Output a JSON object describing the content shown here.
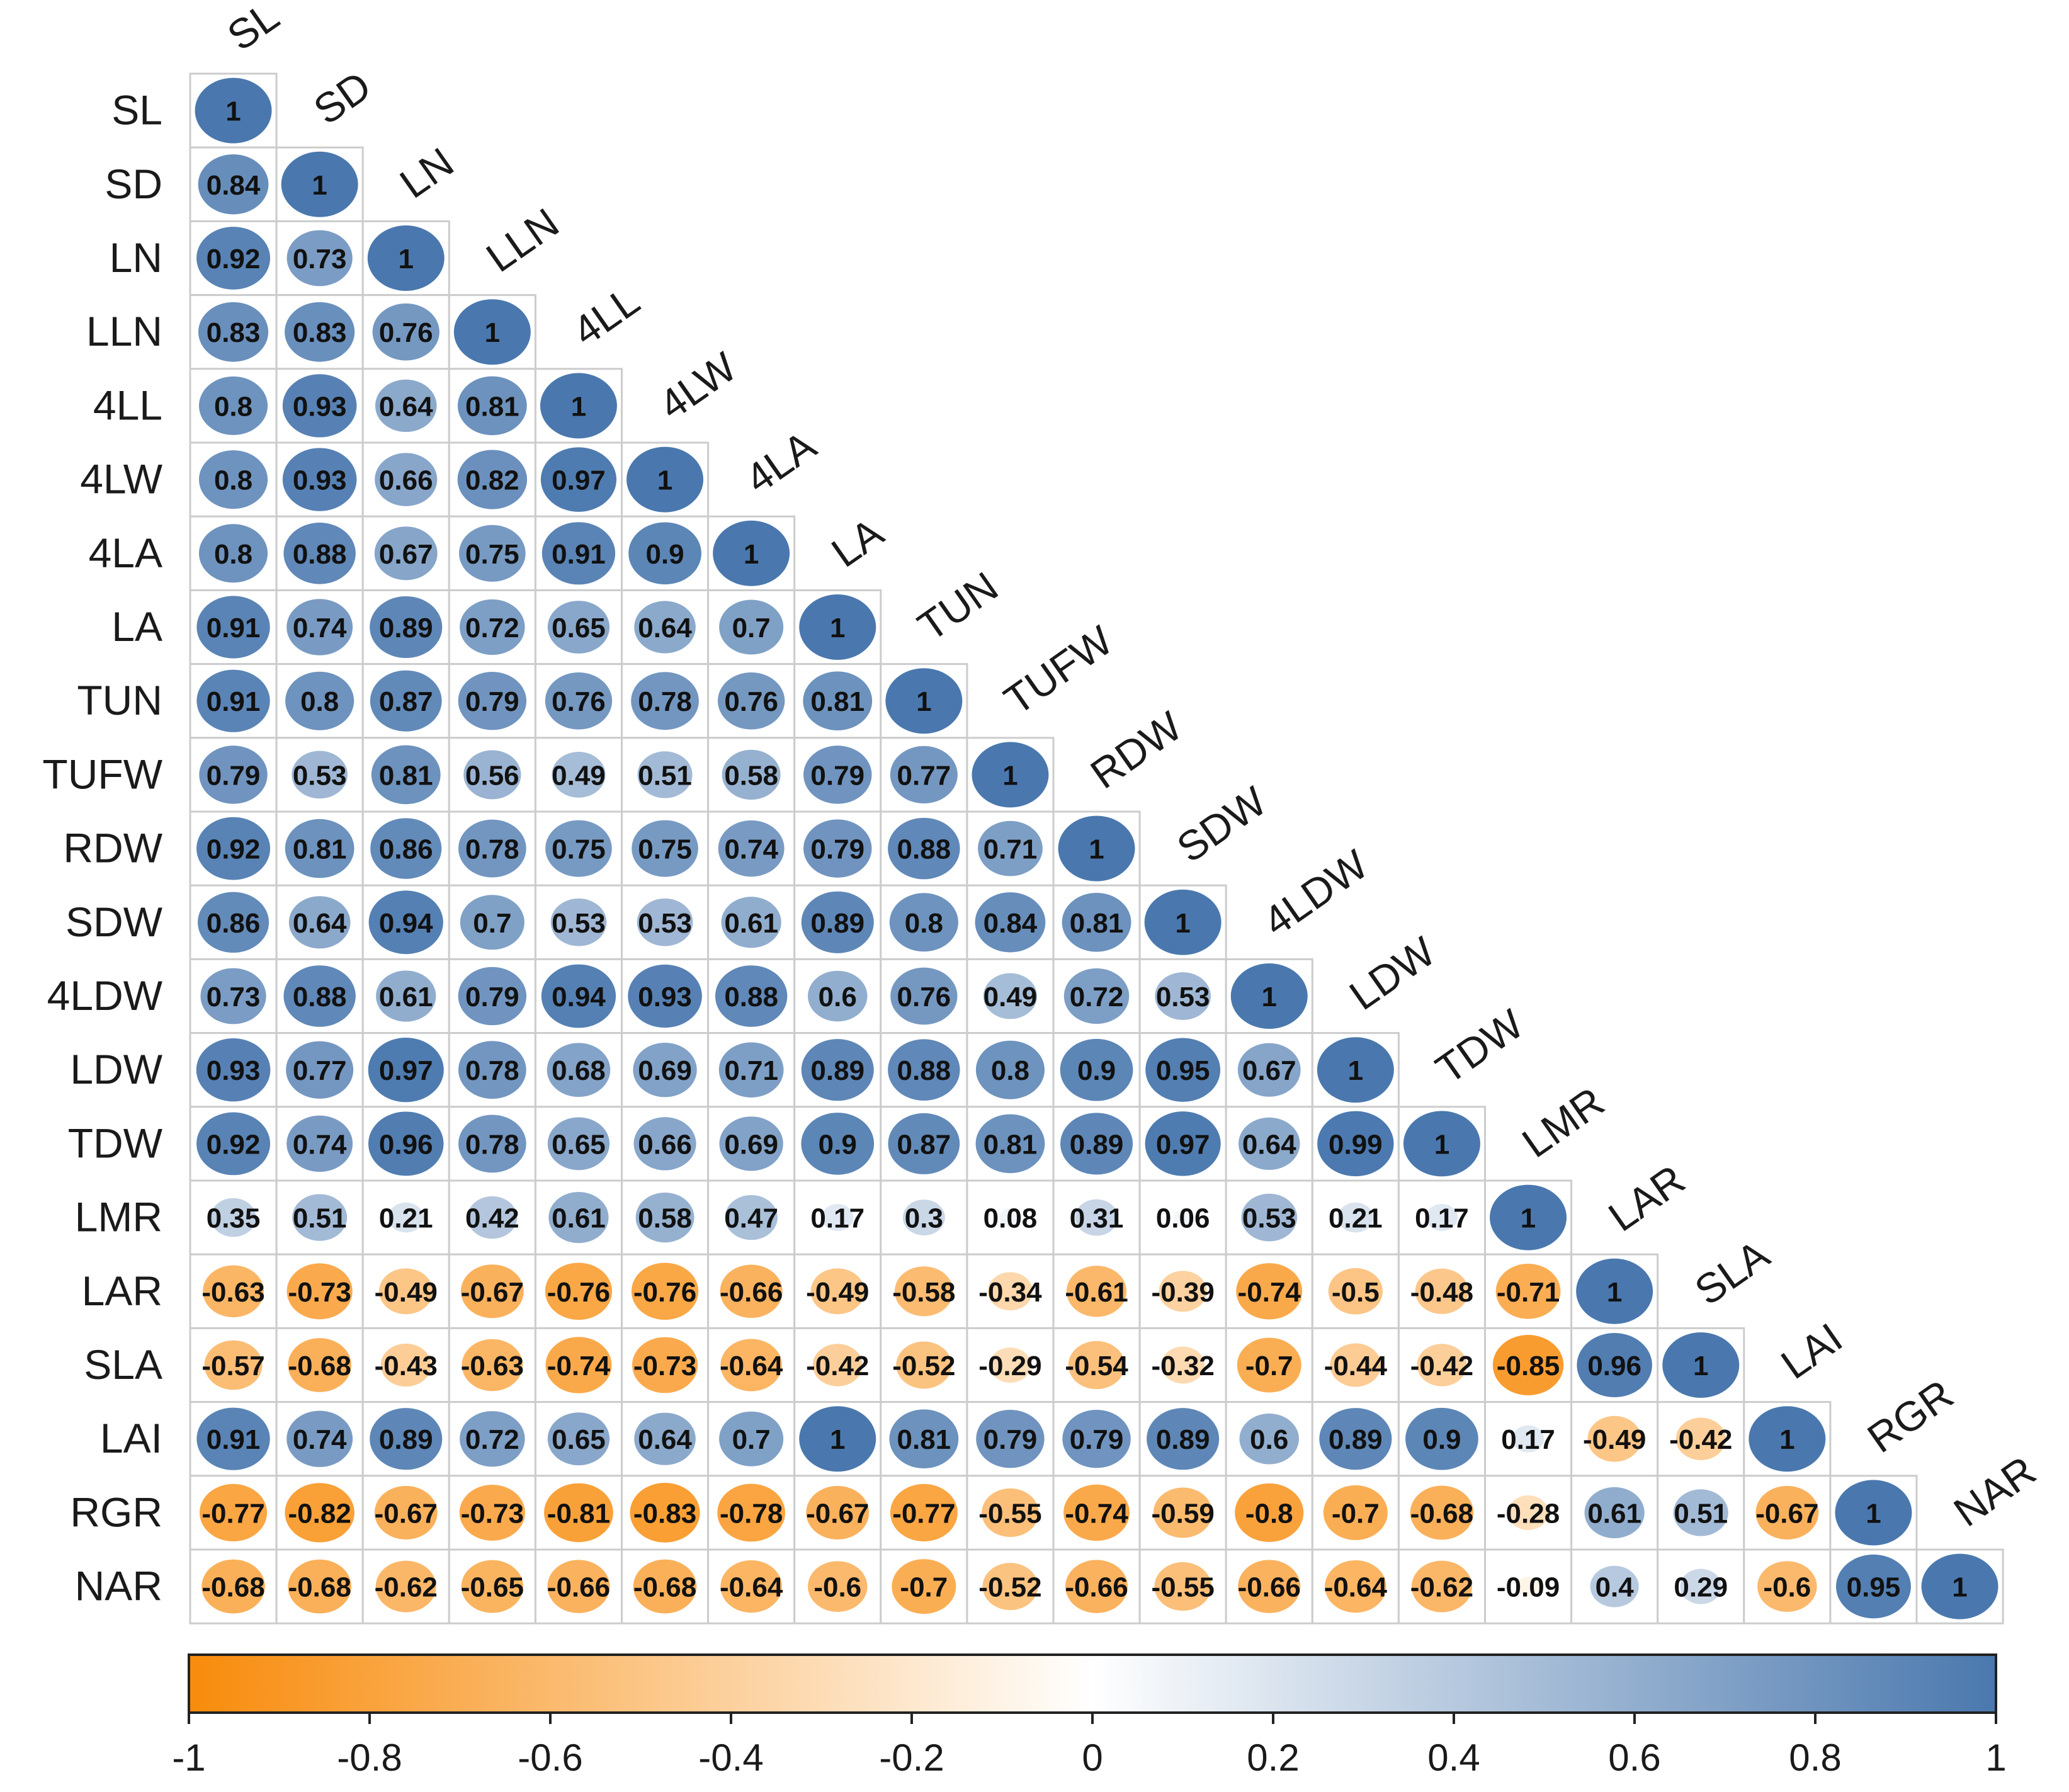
{
  "chart_data": {
    "type": "heatmap",
    "title": "",
    "variables": [
      "SL",
      "SD",
      "LN",
      "LLN",
      "4LL",
      "4LW",
      "4LA",
      "LA",
      "TUN",
      "TUFW",
      "RDW",
      "SDW",
      "4LDW",
      "LDW",
      "TDW",
      "LMR",
      "LAR",
      "SLA",
      "LAI",
      "RGR",
      "NAR"
    ],
    "lower_triangle": [
      [
        "1"
      ],
      [
        "0.84",
        "1"
      ],
      [
        "0.92",
        "0.73",
        "1"
      ],
      [
        "0.83",
        "0.83",
        "0.76",
        "1"
      ],
      [
        "0.8",
        "0.93",
        "0.64",
        "0.81",
        "1"
      ],
      [
        "0.8",
        "0.93",
        "0.66",
        "0.82",
        "0.97",
        "1"
      ],
      [
        "0.8",
        "0.88",
        "0.67",
        "0.75",
        "0.91",
        "0.9",
        "1"
      ],
      [
        "0.91",
        "0.74",
        "0.89",
        "0.72",
        "0.65",
        "0.64",
        "0.7",
        "1"
      ],
      [
        "0.91",
        "0.8",
        "0.87",
        "0.79",
        "0.76",
        "0.78",
        "0.76",
        "0.81",
        "1"
      ],
      [
        "0.79",
        "0.53",
        "0.81",
        "0.56",
        "0.49",
        "0.51",
        "0.58",
        "0.79",
        "0.77",
        "1"
      ],
      [
        "0.92",
        "0.81",
        "0.86",
        "0.78",
        "0.75",
        "0.75",
        "0.74",
        "0.79",
        "0.88",
        "0.71",
        "1"
      ],
      [
        "0.86",
        "0.64",
        "0.94",
        "0.7",
        "0.53",
        "0.53",
        "0.61",
        "0.89",
        "0.8",
        "0.84",
        "0.81",
        "1"
      ],
      [
        "0.73",
        "0.88",
        "0.61",
        "0.79",
        "0.94",
        "0.93",
        "0.88",
        "0.6",
        "0.76",
        "0.49",
        "0.72",
        "0.53",
        "1"
      ],
      [
        "0.93",
        "0.77",
        "0.97",
        "0.78",
        "0.68",
        "0.69",
        "0.71",
        "0.89",
        "0.88",
        "0.8",
        "0.9",
        "0.95",
        "0.67",
        "1"
      ],
      [
        "0.92",
        "0.74",
        "0.96",
        "0.78",
        "0.65",
        "0.66",
        "0.69",
        "0.9",
        "0.87",
        "0.81",
        "0.89",
        "0.97",
        "0.64",
        "0.99",
        "1"
      ],
      [
        "0.35",
        "0.51",
        "0.21",
        "0.42",
        "0.61",
        "0.58",
        "0.47",
        "0.17",
        "0.3",
        "0.08",
        "0.31",
        "0.06",
        "0.53",
        "0.21",
        "0.17",
        "1"
      ],
      [
        "-0.63",
        "-0.73",
        "-0.49",
        "-0.67",
        "-0.76",
        "-0.76",
        "-0.66",
        "-0.49",
        "-0.58",
        "-0.34",
        "-0.61",
        "-0.39",
        "-0.74",
        "-0.5",
        "-0.48",
        "-0.71",
        "1"
      ],
      [
        "-0.57",
        "-0.68",
        "-0.43",
        "-0.63",
        "-0.74",
        "-0.73",
        "-0.64",
        "-0.42",
        "-0.52",
        "-0.29",
        "-0.54",
        "-0.32",
        "-0.7",
        "-0.44",
        "-0.42",
        "-0.85",
        "0.96",
        "1"
      ],
      [
        "0.91",
        "0.74",
        "0.89",
        "0.72",
        "0.65",
        "0.64",
        "0.7",
        "1",
        "0.81",
        "0.79",
        "0.79",
        "0.89",
        "0.6",
        "0.89",
        "0.9",
        "0.17",
        "-0.49",
        "-0.42",
        "1"
      ],
      [
        "-0.77",
        "-0.82",
        "-0.67",
        "-0.73",
        "-0.81",
        "-0.83",
        "-0.78",
        "-0.67",
        "-0.77",
        "-0.55",
        "-0.74",
        "-0.59",
        "-0.8",
        "-0.7",
        "-0.68",
        "-0.28",
        "0.61",
        "0.51",
        "-0.67",
        "1"
      ],
      [
        "-0.68",
        "-0.68",
        "-0.62",
        "-0.65",
        "-0.66",
        "-0.68",
        "-0.64",
        "-0.6",
        "-0.7",
        "-0.52",
        "-0.66",
        "-0.55",
        "-0.66",
        "-0.64",
        "-0.62",
        "-0.09",
        "0.4",
        "0.29",
        "-0.6",
        "0.95",
        "1"
      ]
    ],
    "colorbar": {
      "range": [
        -1,
        1
      ],
      "ticks": [
        "-1",
        "-0.8",
        "-0.6",
        "-0.4",
        "-0.2",
        "0",
        "0.2",
        "0.4",
        "0.6",
        "0.8",
        "1"
      ],
      "colors": {
        "negative": "#F88B0B",
        "neutral": "#FFFFFF",
        "positive": "#4A78AE"
      }
    },
    "cell_border_color": "#CCCCCC",
    "text_color": "#111111"
  }
}
